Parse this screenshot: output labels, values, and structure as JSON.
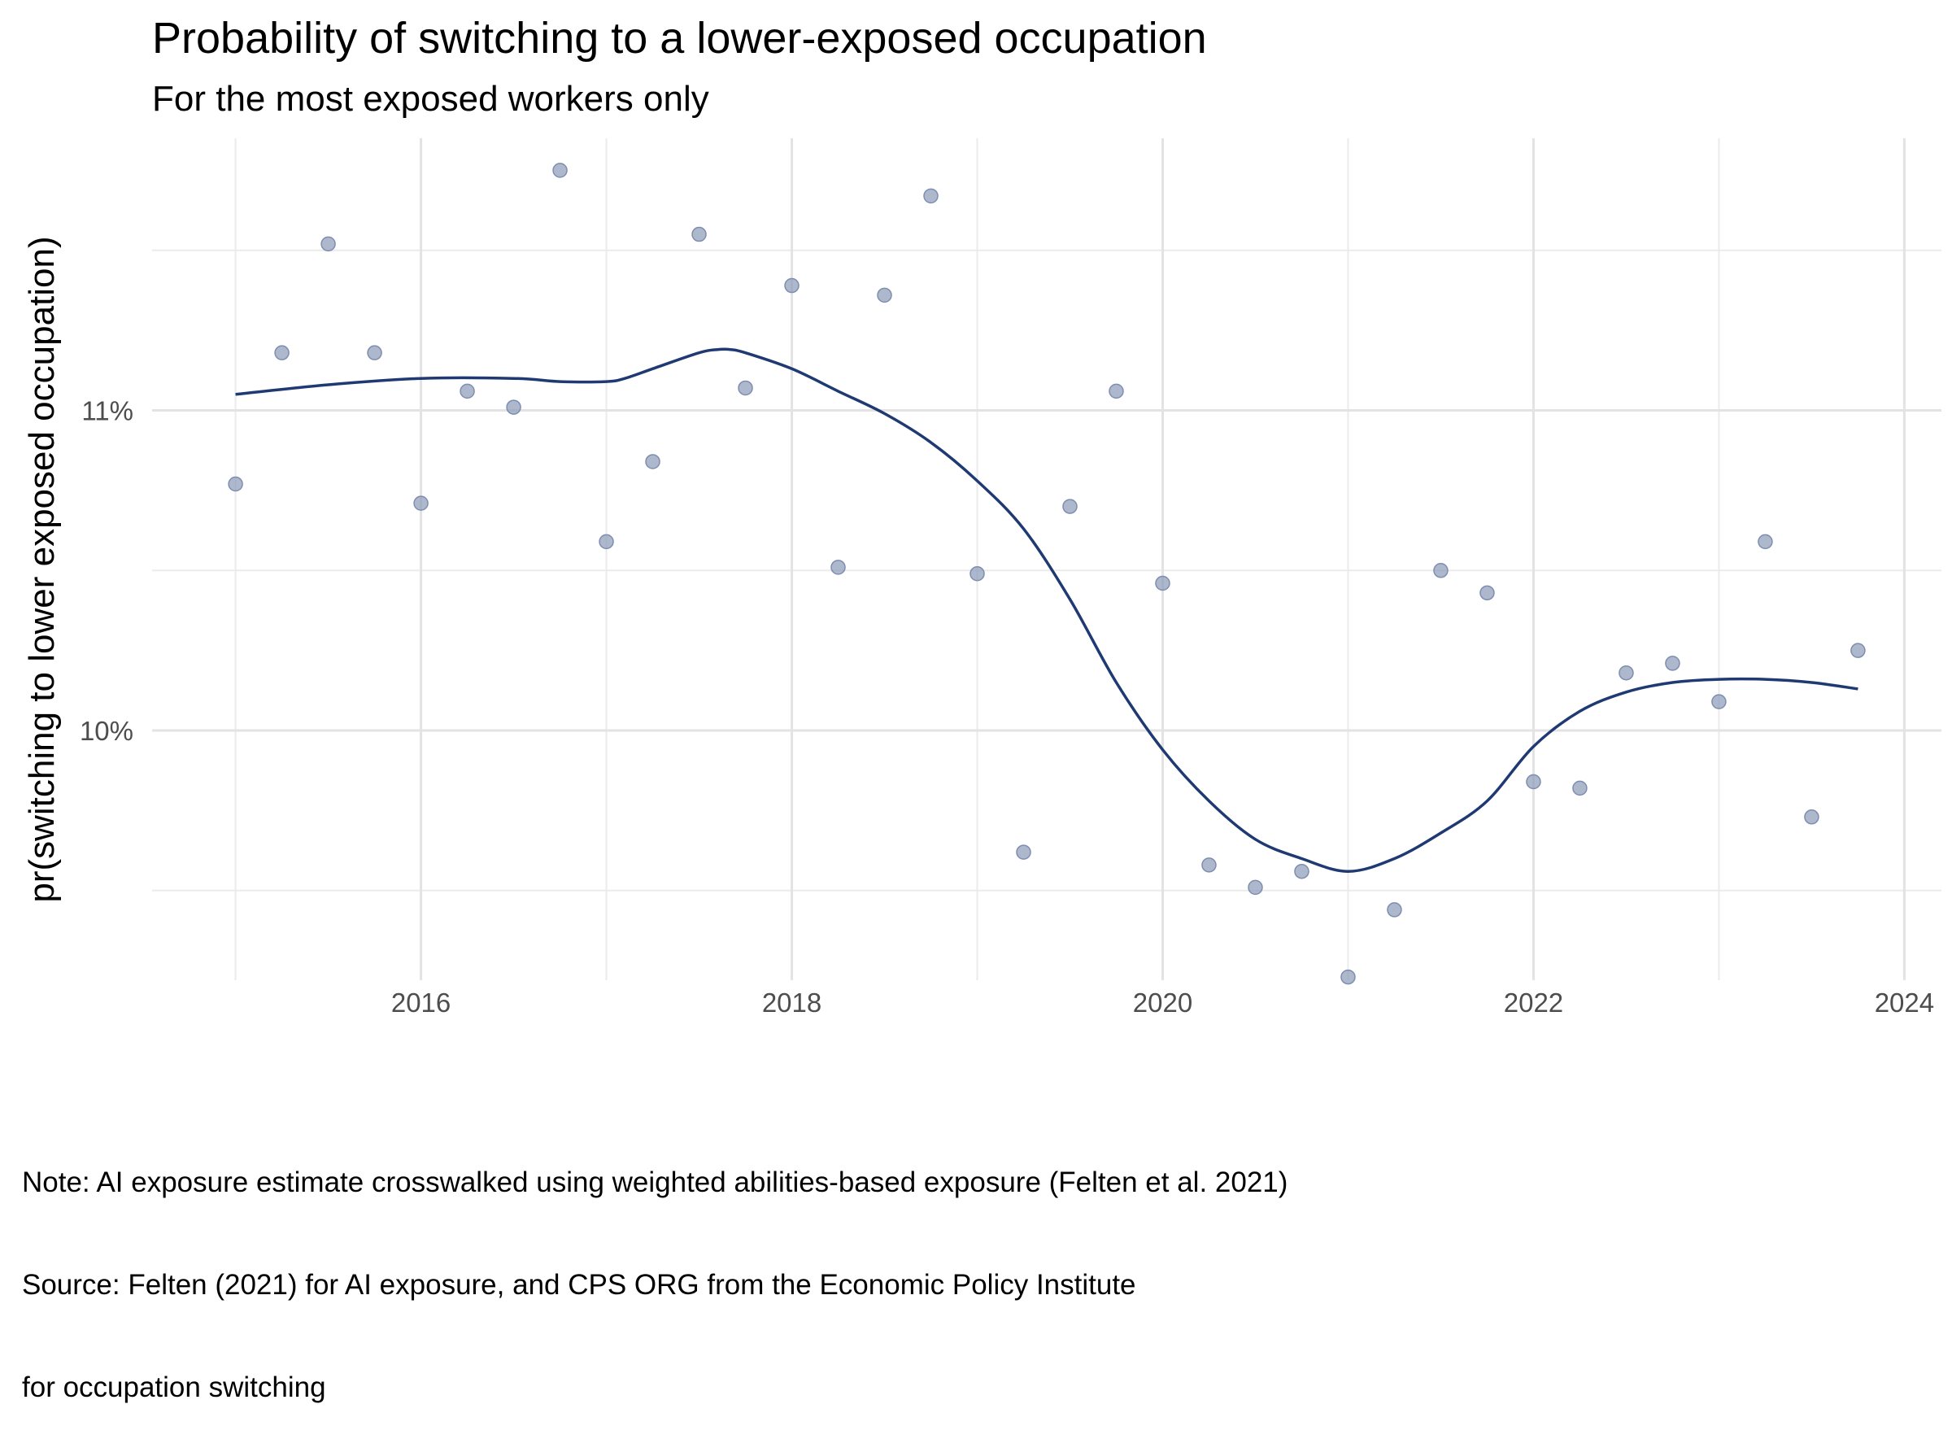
{
  "chart_data": {
    "type": "scatter",
    "title": "Probability of switching to a lower-exposed occupation",
    "subtitle": "For the most exposed workers only",
    "xlabel": "",
    "ylabel": "pr(switching to lower exposed occupation)",
    "xlim": [
      2014.55,
      2024.2
    ],
    "ylim": [
      0.0922,
      0.1185
    ],
    "x_ticks": [
      2016,
      2018,
      2020,
      2022,
      2024
    ],
    "x_tick_labels": [
      "2016",
      "2018",
      "2020",
      "2022",
      "2024"
    ],
    "y_ticks": [
      0.1,
      0.11
    ],
    "y_tick_labels": [
      "10%",
      "11%"
    ],
    "grid": true,
    "series": [
      {
        "kind": "points",
        "color": "#8c9ab8",
        "x": [
          2015.0,
          2015.25,
          2015.5,
          2015.75,
          2016.0,
          2016.25,
          2016.5,
          2016.75,
          2017.0,
          2017.25,
          2017.5,
          2017.75,
          2018.0,
          2018.25,
          2018.5,
          2018.75,
          2019.0,
          2019.25,
          2019.5,
          2019.75,
          2020.0,
          2020.25,
          2020.5,
          2020.75,
          2021.0,
          2021.25,
          2021.5,
          2021.75,
          2022.0,
          2022.25,
          2022.5,
          2022.75,
          2023.0,
          2023.25,
          2023.5,
          2023.75
        ],
        "y": [
          0.1077,
          0.1118,
          0.1152,
          0.1118,
          0.1071,
          0.1106,
          0.1101,
          0.1175,
          0.1059,
          0.1084,
          0.1155,
          0.1107,
          0.1139,
          0.1051,
          0.1136,
          0.1167,
          0.1049,
          0.0962,
          0.107,
          0.1106,
          0.1046,
          0.0958,
          0.0951,
          0.0956,
          0.0923,
          0.0944,
          0.105,
          0.1043,
          0.0984,
          0.0982,
          0.1018,
          0.1021,
          0.1009,
          0.1059,
          0.0973,
          0.1025
        ]
      },
      {
        "kind": "smooth",
        "color": "#1f3a73",
        "x": [
          2015.0,
          2015.5,
          2016.0,
          2016.5,
          2016.75,
          2017.0,
          2017.1,
          2017.25,
          2017.5,
          2017.6,
          2017.67,
          2017.75,
          2018.0,
          2018.25,
          2018.5,
          2018.75,
          2019.0,
          2019.25,
          2019.5,
          2019.75,
          2020.0,
          2020.25,
          2020.5,
          2020.75,
          2021.0,
          2021.25,
          2021.5,
          2021.75,
          2022.0,
          2022.25,
          2022.5,
          2022.75,
          2023.0,
          2023.25,
          2023.5,
          2023.75
        ],
        "y": [
          0.1105,
          0.1108,
          0.111,
          0.111,
          0.1109,
          0.1109,
          0.111,
          0.1113,
          0.1118,
          0.1119,
          0.1119,
          0.1118,
          0.1113,
          0.1106,
          0.1099,
          0.109,
          0.1078,
          0.1063,
          0.1041,
          0.1015,
          0.0994,
          0.0978,
          0.0966,
          0.096,
          0.0956,
          0.096,
          0.0968,
          0.0978,
          0.0995,
          0.1006,
          0.1012,
          0.1015,
          0.1016,
          0.1016,
          0.1015,
          0.1013
        ]
      }
    ],
    "note_lines": [
      "Note: AI exposure estimate crosswalked using weighted abilities-based exposure (Felten et al. 2021)",
      "Source: Felten (2021) for AI exposure, and CPS ORG from the Economic Policy Institute",
      "for occupation switching"
    ]
  }
}
